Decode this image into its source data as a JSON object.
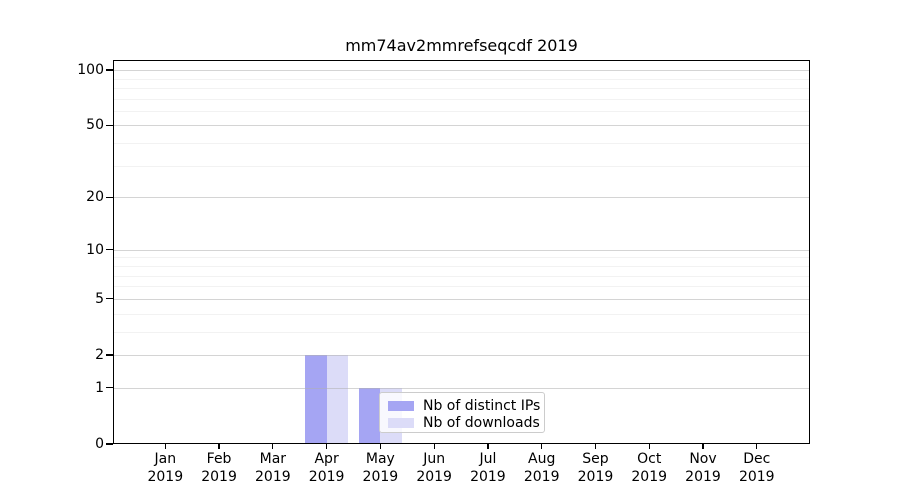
{
  "chart_data": {
    "type": "bar",
    "title": "mm74av2mmrefseqcdf 2019",
    "categories": [
      "Jan 2019",
      "Feb 2019",
      "Mar 2019",
      "Apr 2019",
      "May 2019",
      "Jun 2019",
      "Jul 2019",
      "Aug 2019",
      "Sep 2019",
      "Oct 2019",
      "Nov 2019",
      "Dec 2019"
    ],
    "series": [
      {
        "name": "Nb of distinct IPs",
        "color": "#a5a5f3",
        "values": [
          0,
          0,
          0,
          2,
          1,
          0,
          0,
          0,
          0,
          0,
          0,
          0
        ]
      },
      {
        "name": "Nb of downloads",
        "color": "#dcdcf8",
        "values": [
          0,
          0,
          0,
          2,
          1,
          0,
          0,
          0,
          0,
          0,
          0,
          0
        ]
      }
    ],
    "yscale": "log1p",
    "ylim": [
      0,
      113
    ],
    "yticks": {
      "values": [
        0,
        1,
        2,
        5,
        10,
        20,
        50,
        100
      ],
      "labels": [
        "0",
        "1",
        "2",
        "5",
        "10",
        "20",
        "50",
        "100"
      ]
    },
    "minor_gridlines": [
      3,
      4,
      6,
      7,
      8,
      9,
      30,
      40,
      60,
      70,
      80,
      90
    ],
    "grid": "on",
    "grid_above_bars": true,
    "legend": {
      "position": "lower center"
    }
  }
}
